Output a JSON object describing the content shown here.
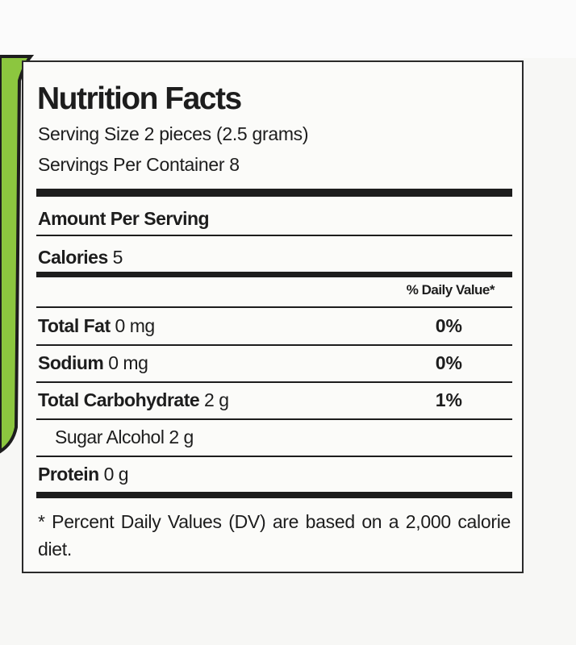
{
  "label": {
    "title": "Nutrition Facts",
    "serving_size": "Serving Size 2 pieces (2.5 grams)",
    "servings_per_container": "Servings Per Container 8",
    "amount_per_serving": "Amount Per Serving",
    "calories": {
      "label": "Calories",
      "value": "5"
    },
    "daily_value_header": "% Daily Value*",
    "rows": [
      {
        "name": "Total Fat",
        "amount": "0 mg",
        "dv": "0%"
      },
      {
        "name": "Sodium",
        "amount": "0 mg",
        "dv": "0%"
      },
      {
        "name": "Total Carbohydrate",
        "amount": "2 g",
        "dv": "1%"
      },
      {
        "name": "Sugar Alcohol",
        "amount": "2 g",
        "sub": true
      },
      {
        "name": "Protein",
        "amount": "0 g"
      }
    ],
    "footnote": "* Percent Daily Values (DV) are based on a 2,000 calorie diet."
  }
}
